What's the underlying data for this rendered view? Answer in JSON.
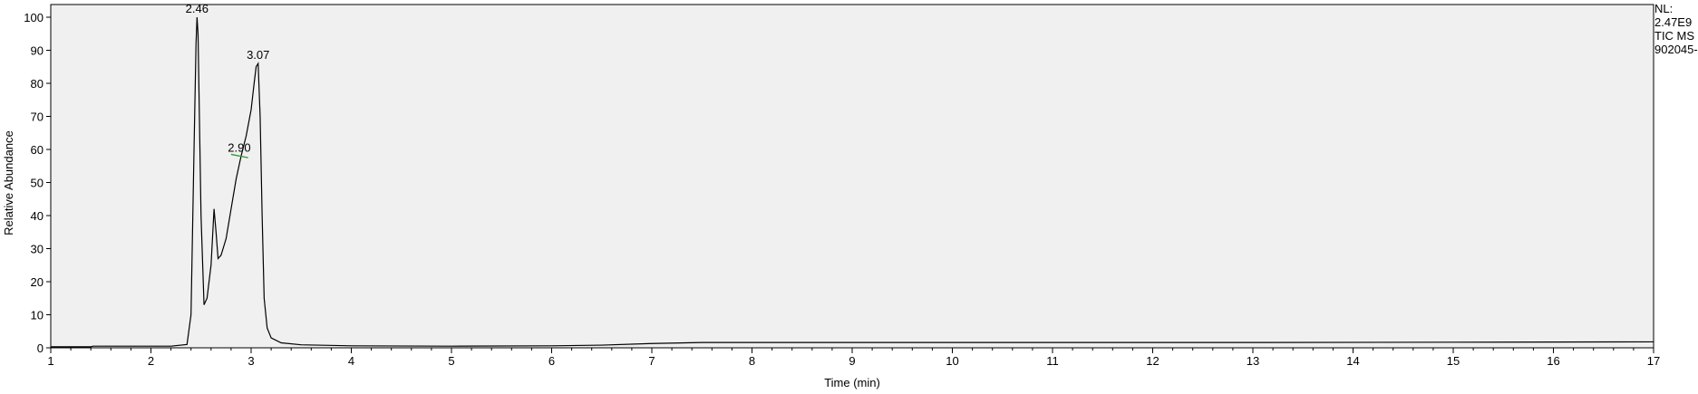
{
  "chart_data": {
    "type": "line",
    "xlabel": "Time (min)",
    "ylabel": "Relative Abundance",
    "xlim": [
      1,
      17
    ],
    "ylim": [
      0,
      100
    ],
    "x_ticks": [
      "1",
      "2",
      "3",
      "4",
      "5",
      "6",
      "7",
      "8",
      "9",
      "10",
      "11",
      "12",
      "13",
      "14",
      "15",
      "16",
      "17"
    ],
    "y_ticks": [
      "0",
      "10",
      "20",
      "30",
      "40",
      "50",
      "60",
      "70",
      "80",
      "90",
      "100"
    ],
    "grid": false,
    "series": [
      {
        "x": [
          1.0,
          1.4,
          1.42,
          1.8,
          2.2,
          2.36,
          2.4,
          2.43,
          2.45,
          2.46,
          2.47,
          2.5,
          2.53,
          2.56,
          2.6,
          2.63,
          2.65,
          2.67,
          2.7,
          2.75,
          2.8,
          2.85,
          2.9,
          2.95,
          3.0,
          3.03,
          3.05,
          3.07,
          3.09,
          3.11,
          3.13,
          3.16,
          3.2,
          3.3,
          3.5,
          4.0,
          5.0,
          6.0,
          6.5,
          7.0,
          7.5,
          9.0,
          12.0,
          13.0,
          15.0,
          17.0
        ],
        "y": [
          0.3,
          0.3,
          0.5,
          0.5,
          0.5,
          1.0,
          10,
          60,
          92,
          100,
          95,
          40,
          13,
          15,
          25,
          42,
          35,
          27,
          28,
          33,
          42,
          51,
          58,
          64,
          72,
          80,
          85,
          86,
          70,
          40,
          15,
          6,
          3,
          1.5,
          0.9,
          0.6,
          0.5,
          0.6,
          0.8,
          1.3,
          1.6,
          1.6,
          1.6,
          1.6,
          1.7,
          1.8
        ]
      }
    ],
    "peak_labels": [
      {
        "x": 2.46,
        "y": 100,
        "text": "2.46"
      },
      {
        "x": 3.07,
        "y": 86,
        "text": "3.07"
      },
      {
        "x": 2.9,
        "y": 58,
        "text": "2.90"
      }
    ],
    "info_lines": [
      "NL:",
      "2.47E9",
      "TIC  MS",
      "902045-"
    ]
  },
  "colors": {
    "plot_background": "#f0f0f0",
    "trace": "#000000",
    "marker_2_90": "#2e9a2e"
  }
}
